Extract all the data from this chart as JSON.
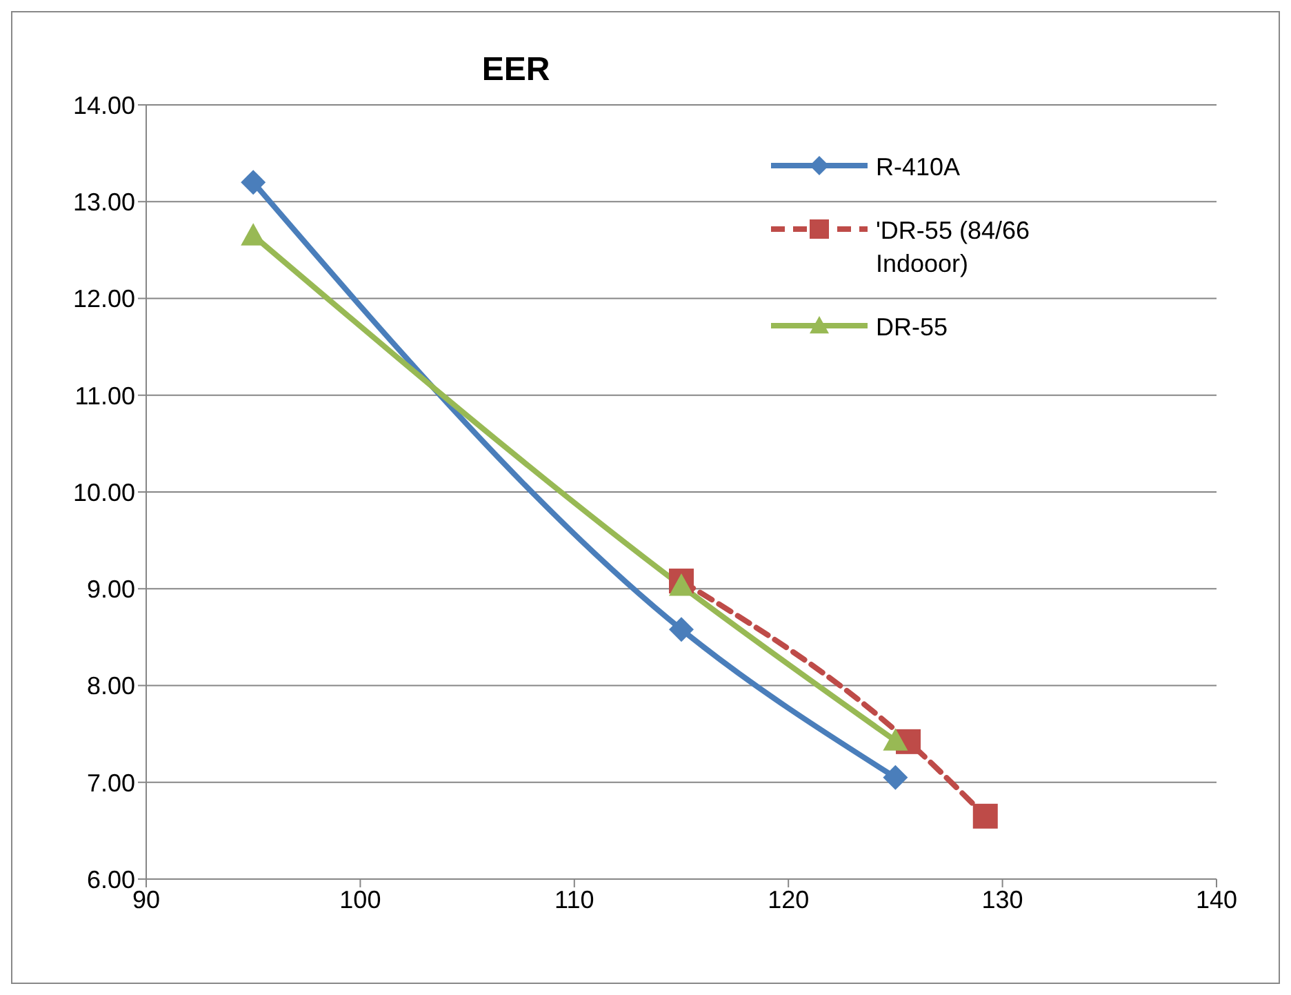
{
  "chart_data": {
    "type": "line",
    "title": "EER",
    "xlim": [
      90,
      140
    ],
    "xticks": [
      90,
      100,
      110,
      120,
      130,
      140
    ],
    "ylim": [
      6,
      14
    ],
    "yticks": [
      {
        "value": 6,
        "label": "6.00"
      },
      {
        "value": 7,
        "label": "7.00"
      },
      {
        "value": 8,
        "label": "8.00"
      },
      {
        "value": 9,
        "label": "9.00"
      },
      {
        "value": 10,
        "label": "10.00"
      },
      {
        "value": 11,
        "label": "11.00"
      },
      {
        "value": 12,
        "label": "12.00"
      },
      {
        "value": 13,
        "label": "13.00"
      },
      {
        "value": 14,
        "label": "14.00"
      }
    ],
    "grid": "y",
    "legend": "top right",
    "series": [
      {
        "name": "R-410A",
        "color": "#4a7ebb",
        "marker": "diamond",
        "line_style": "solid",
        "x": [
          95,
          115,
          125
        ],
        "values": [
          13.2,
          8.58,
          7.05
        ]
      },
      {
        "name": "'DR-55 (84/66 Indooor)",
        "color": "#be4b48",
        "marker": "square",
        "line_style": "dashed",
        "x": [
          115,
          125.6,
          129.2
        ],
        "values": [
          9.08,
          7.42,
          6.65
        ]
      },
      {
        "name": "DR-55",
        "color": "#98b954",
        "marker": "triangle",
        "line_style": "solid",
        "x": [
          95,
          115,
          125
        ],
        "values": [
          12.65,
          9.03,
          7.43
        ]
      }
    ]
  }
}
